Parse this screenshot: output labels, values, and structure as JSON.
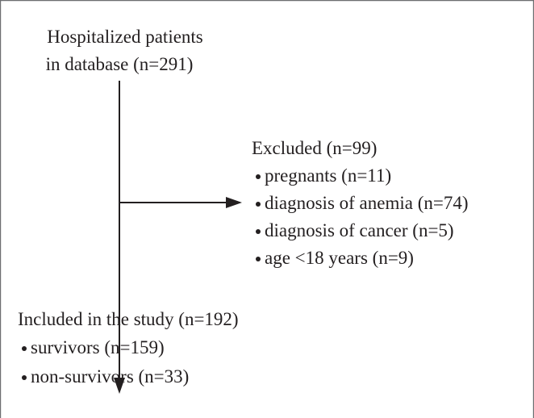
{
  "flowchart": {
    "start": {
      "lines": [
        "Hospitalized patients",
        "in database (n=291)"
      ]
    },
    "excluded": {
      "title": "Excluded (n=99)",
      "items": [
        "pregnants (n=11)",
        "diagnosis of anemia (n=74)",
        "diagnosis of cancer (n=5)",
        "age <18 years (n=9)"
      ]
    },
    "included": {
      "title": "Included in the study (n=192)",
      "items": [
        "survivors (n=159)",
        "non-survivors (n=33)"
      ]
    }
  }
}
